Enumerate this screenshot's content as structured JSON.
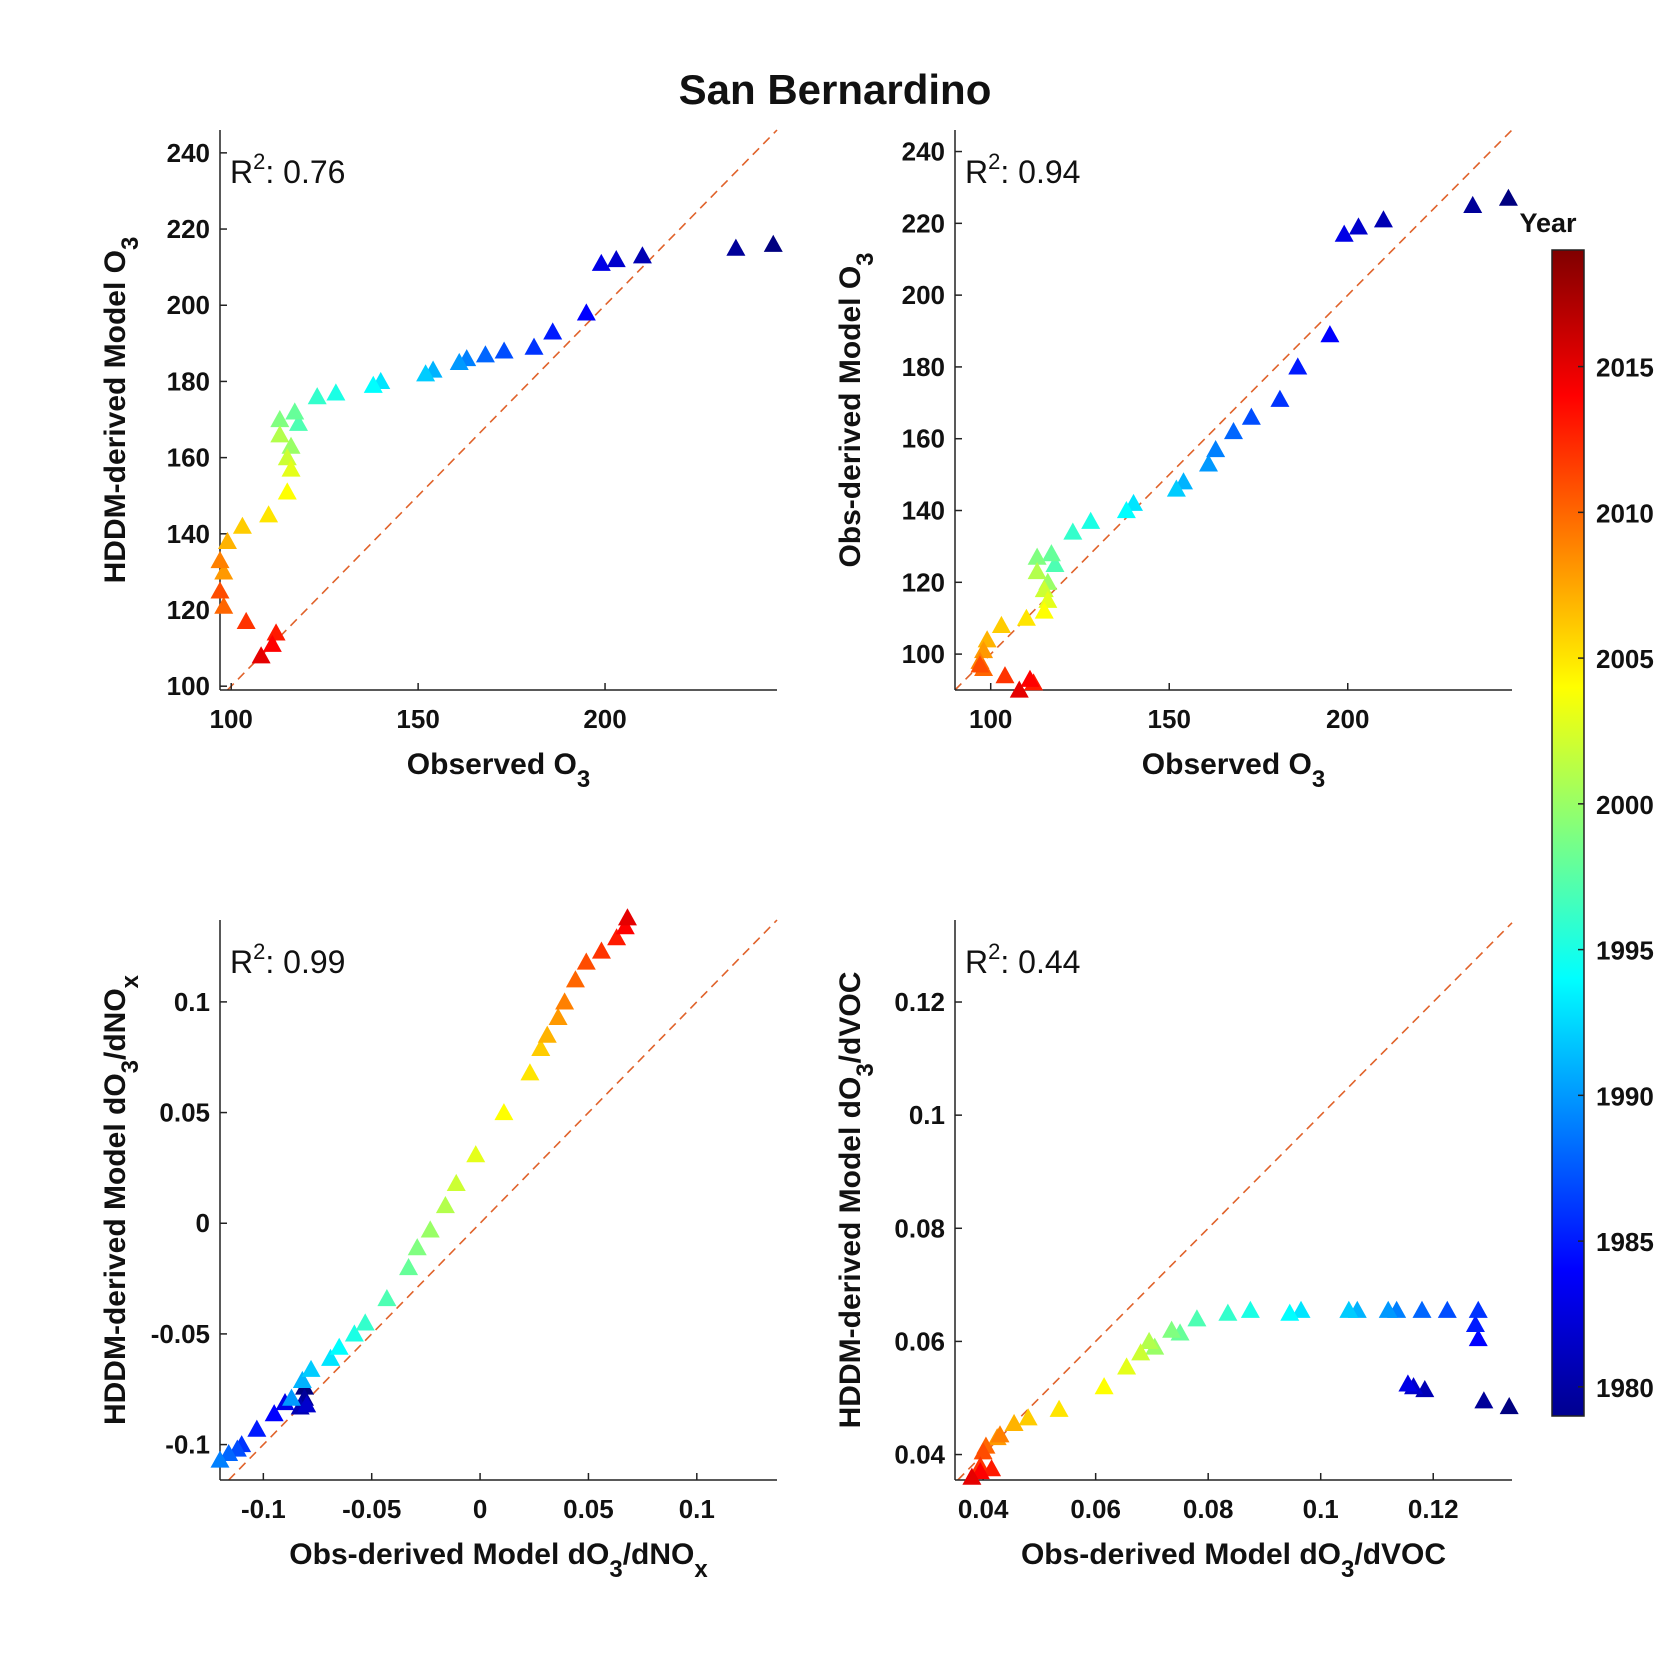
{
  "figure": {
    "title": "San Bernardino"
  },
  "colorbar": {
    "title": "Year",
    "range": [
      1979,
      2019
    ],
    "ticks": [
      1980,
      1985,
      1990,
      1995,
      2000,
      2005,
      2010,
      2015
    ],
    "tick_labels": [
      "1980",
      "1985",
      "1990",
      "1995",
      "2000",
      "2005",
      "2010",
      "2015"
    ],
    "colormap": "jet"
  },
  "chart_data": [
    {
      "type": "scatter",
      "r2_label": "R",
      "r2_sup": "2",
      "r2_value": ": 0.76",
      "xlabel": "Observed O",
      "xlabel_sub": "3",
      "ylabel": "HDDM-derived Model O",
      "ylabel_sub": "3",
      "xlim": [
        97,
        246
      ],
      "ylim": [
        99,
        246
      ],
      "xticks": [
        100,
        150,
        200
      ],
      "xtick_labels": [
        "100",
        "150",
        "200"
      ],
      "yticks": [
        100,
        120,
        140,
        160,
        180,
        200,
        220,
        240
      ],
      "ytick_labels": [
        "100",
        "120",
        "140",
        "160",
        "180",
        "200",
        "220",
        "240"
      ],
      "identity_line": true,
      "marker": "triangle",
      "x": [
        245,
        235,
        210,
        203,
        199,
        195,
        186,
        181,
        173,
        168,
        163,
        161,
        154,
        152,
        140,
        138,
        128,
        123,
        118,
        117,
        113,
        116,
        113,
        115,
        116,
        115,
        110,
        103,
        99,
        98,
        97,
        98,
        97,
        104,
        112,
        111,
        108
      ],
      "y": [
        216,
        215,
        213,
        212,
        211,
        198,
        193,
        189,
        188,
        187,
        186,
        185,
        183,
        182,
        180,
        179,
        177,
        176,
        169,
        172,
        170,
        163,
        166,
        160,
        157,
        151,
        145,
        142,
        138,
        130,
        133,
        121,
        125,
        117,
        114,
        111,
        108
      ],
      "year": [
        1979,
        1980,
        1981,
        1982,
        1983,
        1984,
        1985,
        1986,
        1987,
        1988,
        1989,
        1990,
        1991,
        1992,
        1993,
        1994,
        1995,
        1996,
        1997,
        1998,
        1999,
        2000,
        2001,
        2002,
        2003,
        2004,
        2005,
        2006,
        2007,
        2008,
        2009,
        2010,
        2011,
        2012,
        2013,
        2014,
        2015
      ]
    },
    {
      "type": "scatter",
      "r2_label": "R",
      "r2_sup": "2",
      "r2_value": ": 0.94",
      "xlabel": "Observed O",
      "xlabel_sub": "3",
      "ylabel": "Obs-derived Model O",
      "ylabel_sub": "3",
      "xlim": [
        90,
        246
      ],
      "ylim": [
        90,
        246
      ],
      "xticks": [
        100,
        150,
        200
      ],
      "xtick_labels": [
        "100",
        "150",
        "200"
      ],
      "yticks": [
        100,
        120,
        140,
        160,
        180,
        200,
        220,
        240
      ],
      "ytick_labels": [
        "100",
        "120",
        "140",
        "160",
        "180",
        "200",
        "220",
        "240"
      ],
      "identity_line": true,
      "marker": "triangle",
      "x": [
        245,
        235,
        210,
        203,
        199,
        195,
        186,
        181,
        173,
        168,
        163,
        161,
        154,
        152,
        140,
        138,
        128,
        123,
        118,
        117,
        113,
        116,
        113,
        115,
        116,
        115,
        110,
        103,
        99,
        98,
        97,
        98,
        97,
        104,
        112,
        111,
        108
      ],
      "y": [
        227,
        225,
        221,
        219,
        217,
        189,
        180,
        171,
        166,
        162,
        157,
        153,
        148,
        146,
        142,
        140,
        137,
        134,
        125,
        128,
        127,
        120,
        123,
        118,
        115,
        112,
        110,
        108,
        104,
        101,
        98,
        96,
        97,
        94,
        92,
        93,
        90
      ],
      "year": [
        1979,
        1980,
        1981,
        1982,
        1983,
        1984,
        1985,
        1986,
        1987,
        1988,
        1989,
        1990,
        1991,
        1992,
        1993,
        1994,
        1995,
        1996,
        1997,
        1998,
        1999,
        2000,
        2001,
        2002,
        2003,
        2004,
        2005,
        2006,
        2007,
        2008,
        2009,
        2010,
        2011,
        2012,
        2013,
        2014,
        2015
      ]
    },
    {
      "type": "scatter",
      "r2_label": "R",
      "r2_sup": "2",
      "r2_value": ": 0.99",
      "xlabel": "Obs-derived Model dO",
      "xlabel_sub": "3",
      "xlabel_post": "/dNO",
      "xlabel_sub2": "x",
      "ylabel": "HDDM-derived Model dO",
      "ylabel_sub": "3",
      "ylabel_post": "/dNO",
      "ylabel_sub2": "x",
      "xlim": [
        -0.12,
        0.137
      ],
      "ylim": [
        -0.116,
        0.137
      ],
      "xticks": [
        -0.1,
        -0.05,
        0,
        0.05,
        0.1
      ],
      "xtick_labels": [
        "-0.1",
        "-0.05",
        "0",
        "0.05",
        "0.1"
      ],
      "yticks": [
        -0.1,
        -0.05,
        0,
        0.05,
        0.1
      ],
      "ytick_labels": [
        "-0.1",
        "-0.05",
        "0",
        "0.05",
        "0.1"
      ],
      "identity_line": true,
      "marker": "triangle",
      "x": [
        -0.081,
        -0.081,
        -0.083,
        -0.08,
        -0.09,
        -0.095,
        -0.103,
        -0.11,
        -0.112,
        -0.116,
        -0.12,
        -0.087,
        -0.082,
        -0.078,
        -0.069,
        -0.065,
        -0.058,
        -0.053,
        -0.043,
        -0.033,
        -0.029,
        -0.023,
        -0.016,
        -0.011,
        -0.002,
        0.011,
        0.023,
        0.028,
        0.031,
        0.036,
        0.039,
        0.044,
        0.049,
        0.056,
        0.063,
        0.067,
        0.068
      ],
      "y": [
        -0.074,
        -0.079,
        -0.083,
        -0.082,
        -0.081,
        -0.086,
        -0.093,
        -0.1,
        -0.102,
        -0.104,
        -0.107,
        -0.079,
        -0.071,
        -0.066,
        -0.061,
        -0.056,
        -0.05,
        -0.045,
        -0.034,
        -0.02,
        -0.011,
        -0.003,
        0.008,
        0.018,
        0.031,
        0.05,
        0.068,
        0.079,
        0.085,
        0.093,
        0.1,
        0.11,
        0.118,
        0.123,
        0.129,
        0.134,
        0.138
      ],
      "year": [
        1979,
        1980,
        1981,
        1982,
        1983,
        1984,
        1985,
        1986,
        1987,
        1988,
        1989,
        1990,
        1991,
        1992,
        1993,
        1994,
        1995,
        1996,
        1997,
        1998,
        1999,
        2000,
        2001,
        2002,
        2003,
        2004,
        2005,
        2006,
        2007,
        2008,
        2009,
        2010,
        2011,
        2012,
        2013,
        2014,
        2015
      ]
    },
    {
      "type": "scatter",
      "r2_label": "R",
      "r2_sup": "2",
      "r2_value": ": 0.44",
      "xlabel": "Obs-derived Model dO",
      "xlabel_sub": "3",
      "xlabel_post": "/dVOC",
      "ylabel": "HDDM-derived Model dO",
      "ylabel_sub": "3",
      "ylabel_post": "/dVOC",
      "xlim": [
        0.035,
        0.134
      ],
      "ylim": [
        0.0355,
        0.1345
      ],
      "xticks": [
        0.04,
        0.06,
        0.08,
        0.1,
        0.12
      ],
      "xtick_labels": [
        "0.04",
        "0.06",
        "0.08",
        "0.1",
        "0.12"
      ],
      "yticks": [
        0.04,
        0.06,
        0.08,
        0.1,
        0.12
      ],
      "ytick_labels": [
        "0.04",
        "0.06",
        "0.08",
        "0.1",
        "0.12"
      ],
      "identity_line": true,
      "marker": "triangle",
      "x": [
        0.1335,
        0.129,
        0.1185,
        0.1165,
        0.1155,
        0.128,
        0.1275,
        0.128,
        0.1225,
        0.118,
        0.1135,
        0.112,
        0.1065,
        0.105,
        0.0965,
        0.0945,
        0.0875,
        0.0835,
        0.078,
        0.075,
        0.0735,
        0.0705,
        0.0695,
        0.068,
        0.0655,
        0.0615,
        0.0535,
        0.048,
        0.0455,
        0.0425,
        0.043,
        0.0405,
        0.04,
        0.0395,
        0.0415,
        0.0395,
        0.038
      ],
      "y": [
        0.0485,
        0.0495,
        0.0515,
        0.052,
        0.0525,
        0.0605,
        0.063,
        0.0655,
        0.0655,
        0.0655,
        0.0655,
        0.0655,
        0.0655,
        0.0655,
        0.0655,
        0.065,
        0.0655,
        0.065,
        0.064,
        0.0615,
        0.062,
        0.059,
        0.06,
        0.058,
        0.0555,
        0.052,
        0.048,
        0.0465,
        0.0455,
        0.043,
        0.0435,
        0.0415,
        0.0405,
        0.038,
        0.0375,
        0.037,
        0.036
      ],
      "year": [
        1979,
        1980,
        1981,
        1982,
        1983,
        1984,
        1985,
        1986,
        1987,
        1988,
        1989,
        1990,
        1991,
        1992,
        1993,
        1994,
        1995,
        1996,
        1997,
        1998,
        1999,
        2000,
        2001,
        2002,
        2003,
        2004,
        2005,
        2006,
        2007,
        2008,
        2009,
        2010,
        2011,
        2012,
        2013,
        2014,
        2015
      ]
    }
  ]
}
